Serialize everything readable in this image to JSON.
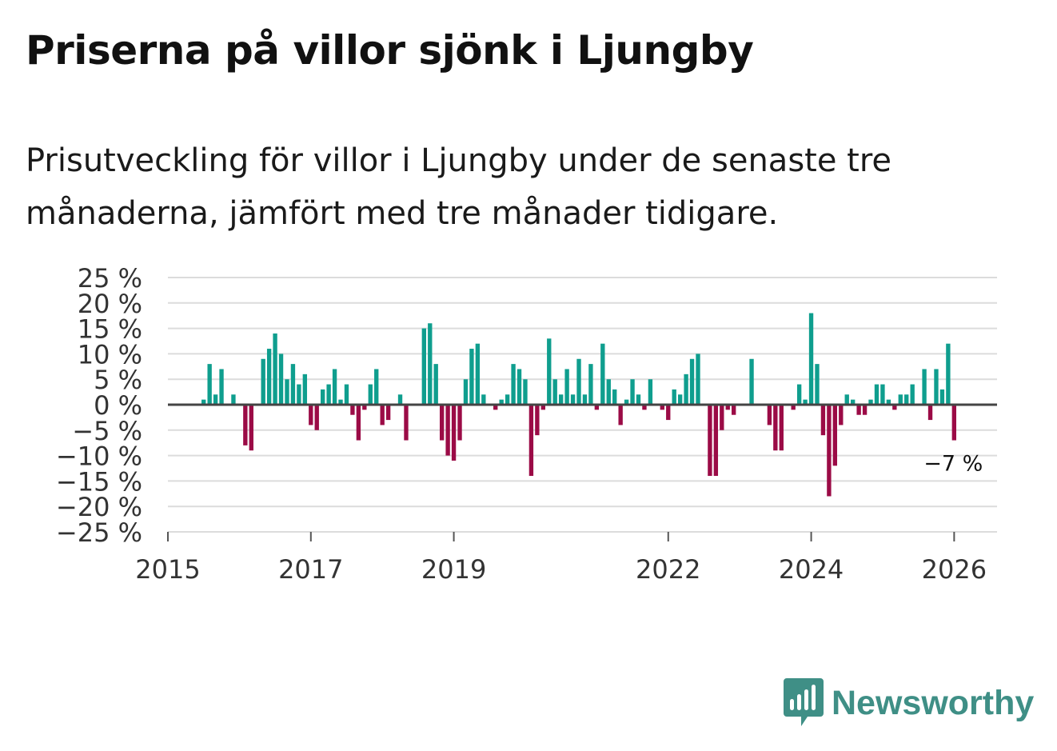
{
  "title": "Priserna på villor sjönk i Ljungby",
  "subtitle": "Prisutveckling för villor i Ljungby under de senaste tre månaderna, jämfört med tre månader tidigare.",
  "brand": {
    "name": "Newsworthy"
  },
  "colors": {
    "positive": "#0f9e8e",
    "negative": "#9b0b46",
    "grid": "#dcdcdc",
    "zero": "#444444",
    "brand": "#3f8f86"
  },
  "chart_data": {
    "type": "bar",
    "title": "Prisutveckling för villor i Ljungby",
    "xlabel": "",
    "ylabel": "",
    "ylim": [
      -25,
      25
    ],
    "xlim": [
      2015.0,
      2026.6
    ],
    "yticks": [
      25,
      20,
      15,
      10,
      5,
      0,
      -5,
      -10,
      -15,
      -20,
      -25
    ],
    "ytick_labels": [
      "25 %",
      "20 %",
      "15 %",
      "10 %",
      "5 %",
      "0 %",
      "−5 %",
      "−10 %",
      "−15 %",
      "−20 %",
      "−25 %"
    ],
    "xticks": [
      2015,
      2017,
      2019,
      2022,
      2024,
      2026
    ],
    "xtick_labels": [
      "2015",
      "2017",
      "2019",
      "2022",
      "2024",
      "2026"
    ],
    "grid": true,
    "last_label": "−7 %",
    "start": 2015.5,
    "step": 0.08333,
    "values": [
      1,
      8,
      2,
      7,
      0,
      2,
      0,
      -8,
      -9,
      0,
      9,
      11,
      14,
      10,
      5,
      8,
      4,
      6,
      -4,
      -5,
      3,
      4,
      7,
      1,
      4,
      -2,
      -7,
      -1,
      4,
      7,
      -4,
      -3,
      0,
      2,
      -7,
      0,
      0,
      15,
      16,
      8,
      -7,
      -10,
      -11,
      -7,
      5,
      11,
      12,
      2,
      0,
      -1,
      1,
      2,
      8,
      7,
      5,
      -14,
      -6,
      -1,
      13,
      5,
      2,
      7,
      2,
      9,
      2,
      8,
      -1,
      12,
      5,
      3,
      -4,
      1,
      5,
      2,
      -1,
      5,
      0,
      -1,
      -3,
      3,
      2,
      6,
      9,
      10,
      0,
      -14,
      -14,
      -5,
      -1,
      -2,
      0,
      0,
      9,
      0,
      0,
      -4,
      -9,
      -9,
      0,
      -1,
      4,
      1,
      18,
      8,
      -6,
      -18,
      -12,
      -4,
      2,
      1,
      -2,
      -2,
      1,
      4,
      4,
      1,
      -1,
      2,
      2,
      4,
      0,
      7,
      -3,
      7,
      3,
      12,
      -7
    ]
  }
}
